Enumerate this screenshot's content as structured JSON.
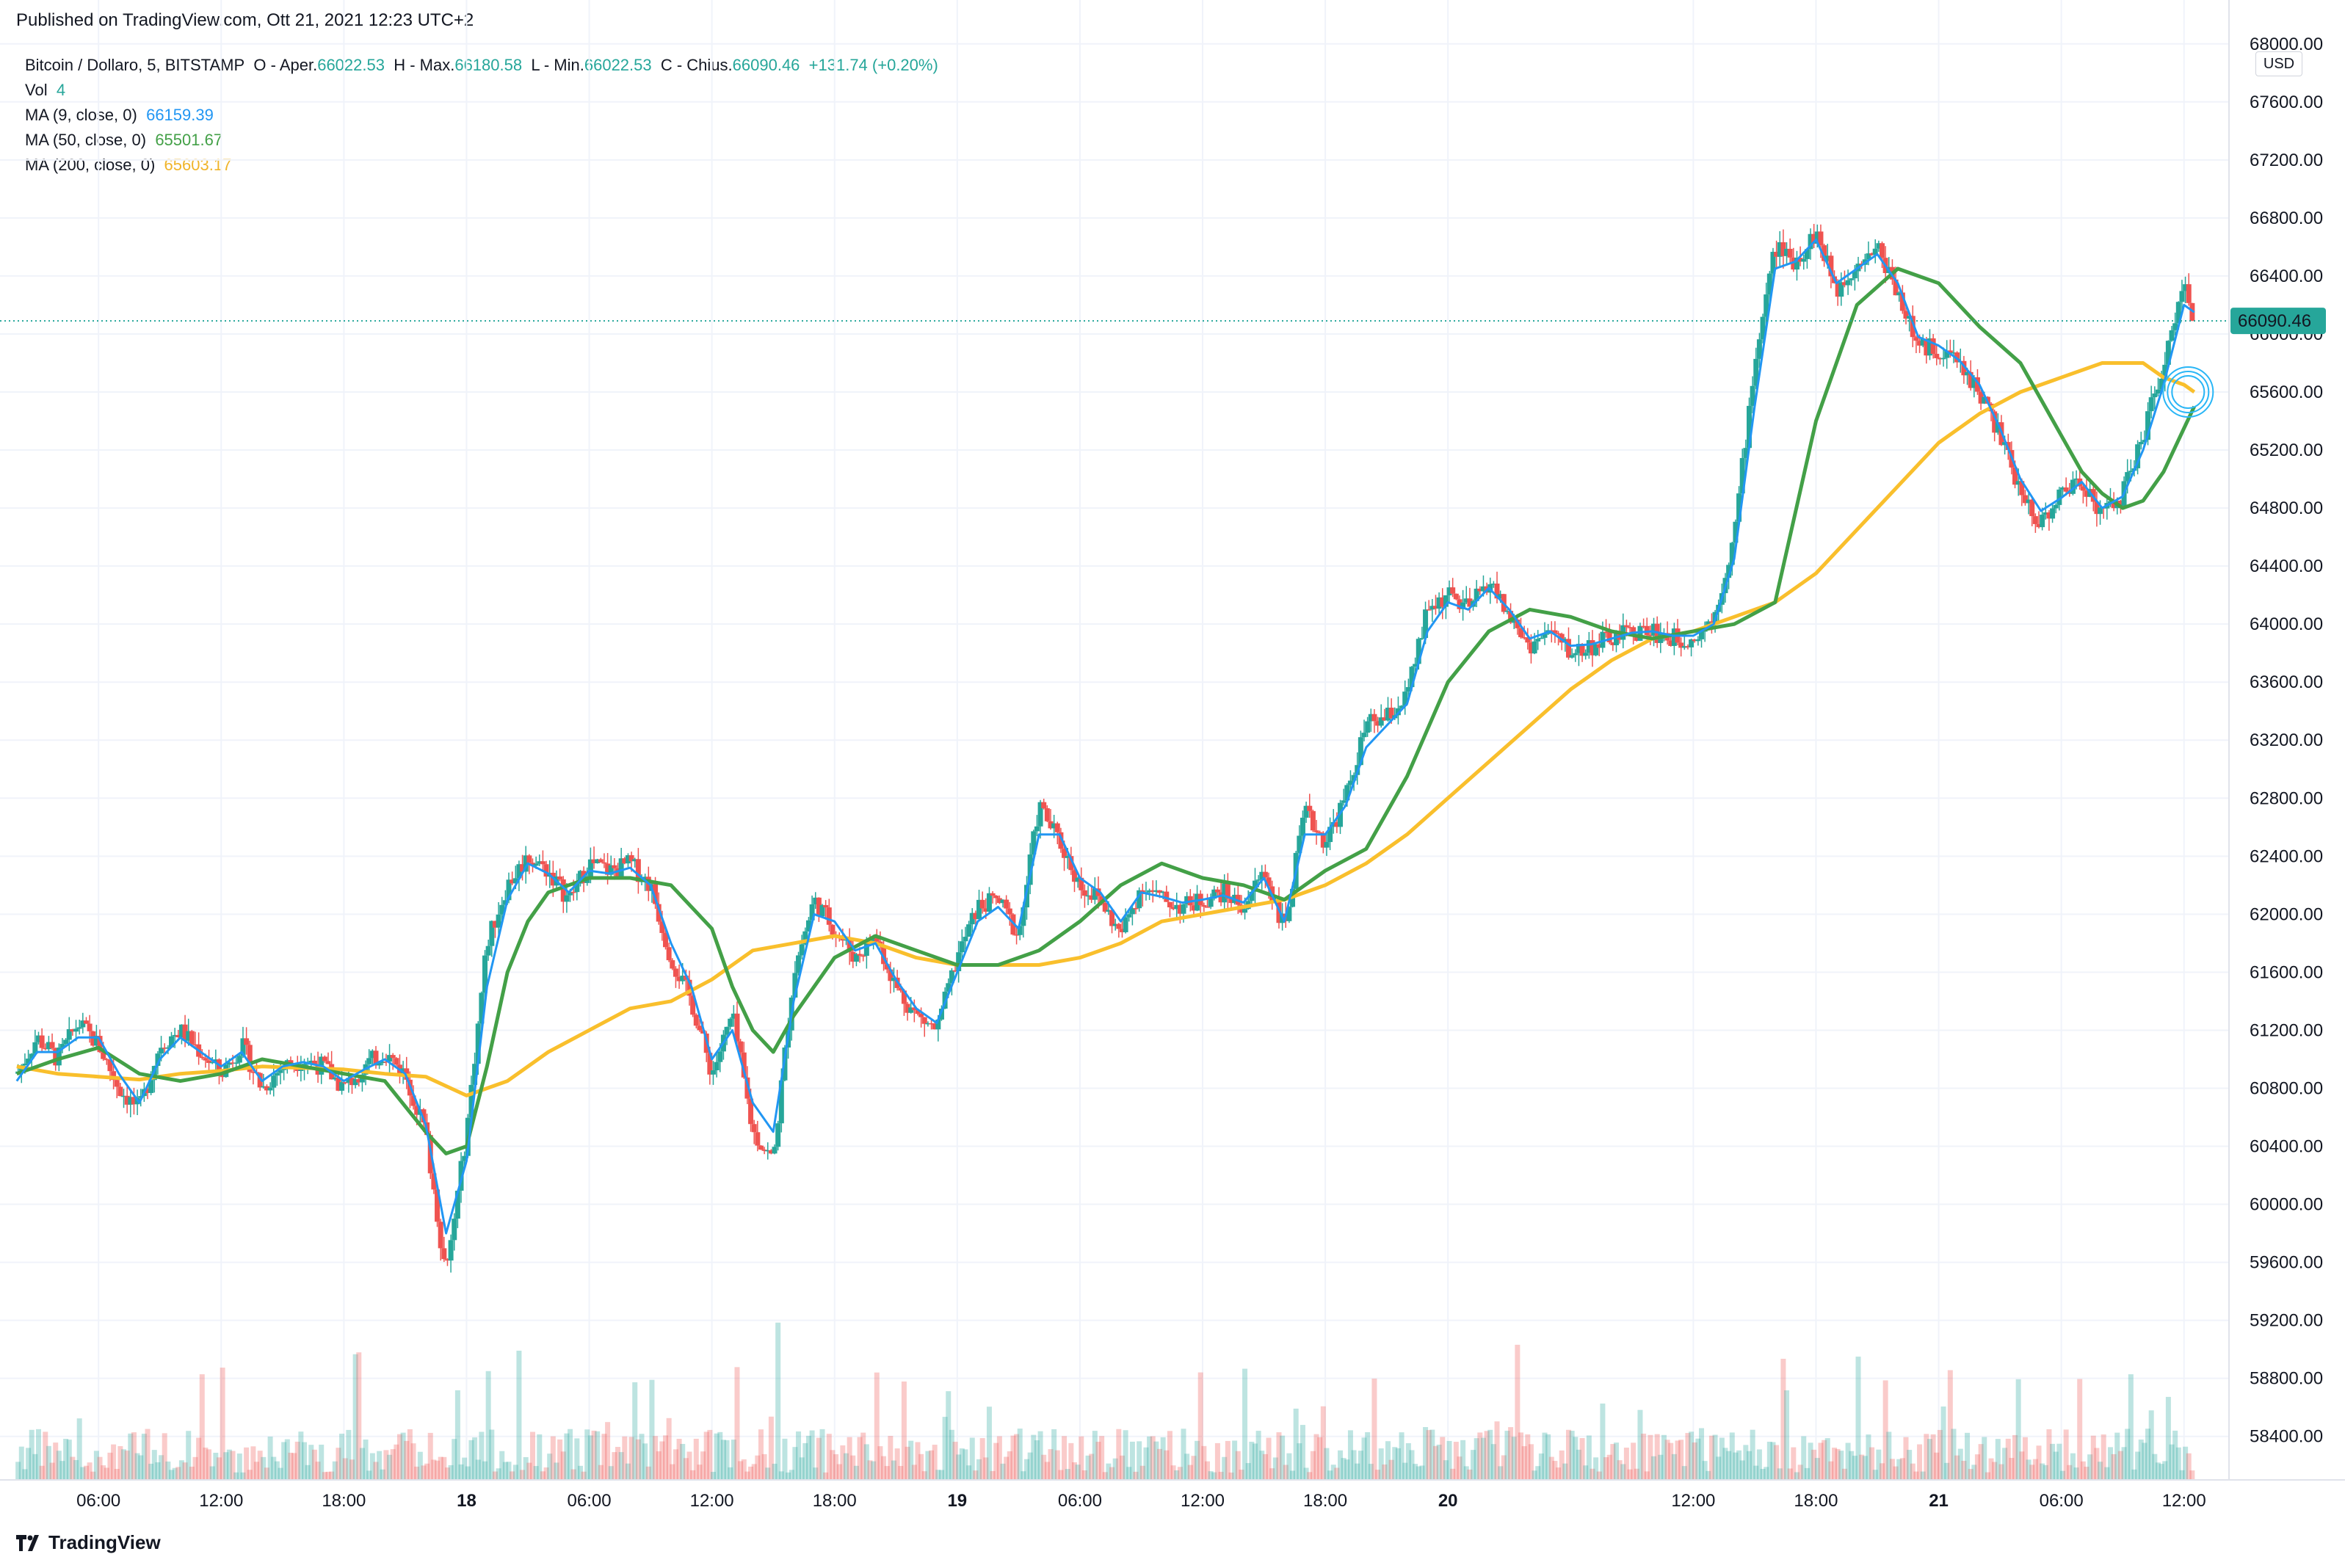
{
  "published": "Published on TradingView.com, Ott 21, 2021 12:23 UTC+2",
  "brand": "TradingView",
  "currency": "USD",
  "legend": {
    "symbol": "Bitcoin / Dollaro, 5, BITSTAMP",
    "o_label": "O - Aper.",
    "o_value": "66022.53",
    "h_label": "H - Max.",
    "h_value": "66180.58",
    "l_label": "L - Min.",
    "l_value": "66022.53",
    "c_label": "C - Chius.",
    "c_value": "66090.46",
    "change": "+131.74 (+0.20%)",
    "vol_label": "Vol",
    "vol_value": "4",
    "ma9_label": "MA (9, close, 0)",
    "ma9_value": "66159.39",
    "ma50_label": "MA (50, close, 0)",
    "ma50_value": "65501.67",
    "ma200_label": "MA (200, close, 0)",
    "ma200_value": "65603.17"
  },
  "colors": {
    "up": "#26a69a",
    "down": "#ef5350",
    "ma9": "#2196f3",
    "ma50": "#43a047",
    "ma200": "#f9bf2c",
    "grid": "#f0f3fa",
    "price_label": "#26a69a"
  },
  "chart_data": {
    "type": "line",
    "title": "",
    "current_price": 66090.46,
    "current_price_label": "66090.46",
    "y_ticks": [
      "68000.00",
      "67600.00",
      "67200.00",
      "66800.00",
      "66400.00",
      "66000.00",
      "65600.00",
      "65200.00",
      "64800.00",
      "64400.00",
      "64000.00",
      "63600.00",
      "63200.00",
      "62800.00",
      "62400.00",
      "62000.00",
      "61600.00",
      "61200.00",
      "60800.00",
      "60400.00",
      "60000.00",
      "59600.00",
      "59200.00",
      "58800.00",
      "58400.00"
    ],
    "y_tick_values": [
      68000,
      67600,
      67200,
      66800,
      66400,
      66000,
      65600,
      65200,
      64800,
      64400,
      64000,
      63600,
      63200,
      62800,
      62400,
      62000,
      61600,
      61200,
      60800,
      60400,
      60000,
      59600,
      59200,
      58800,
      58400
    ],
    "x_labels": [
      {
        "t": 6,
        "label": "06:00",
        "bold": false
      },
      {
        "t": 12,
        "label": "12:00",
        "bold": false
      },
      {
        "t": 18,
        "label": "18:00",
        "bold": false
      },
      {
        "t": 24,
        "label": "18",
        "bold": true
      },
      {
        "t": 30,
        "label": "06:00",
        "bold": false
      },
      {
        "t": 36,
        "label": "12:00",
        "bold": false
      },
      {
        "t": 42,
        "label": "18:00",
        "bold": false
      },
      {
        "t": 48,
        "label": "19",
        "bold": true
      },
      {
        "t": 54,
        "label": "06:00",
        "bold": false
      },
      {
        "t": 60,
        "label": "12:00",
        "bold": false
      },
      {
        "t": 66,
        "label": "18:00",
        "bold": false
      },
      {
        "t": 72,
        "label": "20",
        "bold": true
      },
      {
        "t": 84,
        "label": "12:00",
        "bold": false
      },
      {
        "t": 90,
        "label": "18:00",
        "bold": false
      },
      {
        "t": 96,
        "label": "21",
        "bold": true
      },
      {
        "t": 102,
        "label": "06:00",
        "bold": false
      },
      {
        "t": 108,
        "label": "12:00",
        "bold": false
      }
    ],
    "x_range_hours": [
      1.9,
      110.2
    ],
    "y_range": [
      58100,
      68100
    ],
    "price": {
      "x": [
        2,
        3,
        4,
        5,
        6,
        7,
        8,
        9,
        10,
        11,
        12,
        13,
        14,
        15,
        16,
        17,
        18,
        19,
        20,
        21,
        22,
        23,
        24,
        25,
        26,
        27,
        28,
        29,
        30,
        31,
        32,
        33,
        34,
        35,
        36,
        37,
        38,
        39,
        40,
        41,
        42,
        43,
        44,
        45,
        46,
        47,
        48,
        49,
        50,
        51,
        52,
        53,
        54,
        55,
        56,
        57,
        58,
        59,
        60,
        61,
        62,
        63,
        64,
        65,
        66,
        67,
        68,
        69,
        70,
        71,
        72,
        73,
        74,
        75,
        76,
        77,
        78,
        79,
        80,
        81,
        82,
        83,
        84,
        85,
        86,
        87,
        88,
        89,
        90,
        91,
        92,
        93,
        94,
        95,
        96,
        97,
        98,
        99,
        100,
        101,
        102,
        103,
        104,
        105,
        106,
        107,
        108,
        108.5
      ],
      "y": [
        60900,
        61150,
        61000,
        61250,
        61100,
        60800,
        60650,
        61100,
        61200,
        61050,
        60900,
        61100,
        60800,
        60950,
        61000,
        60950,
        60800,
        60950,
        61050,
        60900,
        60500,
        59500,
        60500,
        61800,
        62200,
        62400,
        62300,
        62100,
        62350,
        62300,
        62350,
        62200,
        61700,
        61400,
        60900,
        61300,
        60500,
        60300,
        61600,
        62100,
        61900,
        61700,
        61850,
        61500,
        61300,
        61200,
        61700,
        62050,
        62100,
        61850,
        62750,
        62500,
        62200,
        62100,
        61850,
        62200,
        62100,
        62050,
        62100,
        62150,
        62050,
        62300,
        61900,
        62700,
        62500,
        62800,
        63300,
        63350,
        63500,
        64100,
        64200,
        64100,
        64300,
        64050,
        63850,
        63950,
        63800,
        63850,
        63900,
        63950,
        63950,
        63900,
        63900,
        64050,
        64600,
        65800,
        66600,
        66500,
        66700,
        66300,
        66500,
        66600,
        66300,
        65900,
        65900,
        65800,
        65600,
        65300,
        64900,
        64700,
        64900,
        65000,
        64750,
        64900,
        65300,
        65800,
        66300,
        66100
      ]
    },
    "ma9": {
      "x": [
        2,
        3,
        4,
        5,
        6,
        7,
        8,
        9,
        10,
        11,
        12,
        13,
        14,
        15,
        16,
        17,
        18,
        19,
        20,
        21,
        22,
        23,
        24,
        25,
        26,
        27,
        28,
        29,
        30,
        31,
        32,
        33,
        34,
        35,
        36,
        37,
        38,
        39,
        40,
        41,
        42,
        43,
        44,
        45,
        46,
        47,
        48,
        49,
        50,
        51,
        52,
        53,
        54,
        55,
        56,
        57,
        58,
        59,
        60,
        61,
        62,
        63,
        64,
        65,
        66,
        67,
        68,
        69,
        70,
        71,
        72,
        73,
        74,
        75,
        76,
        77,
        78,
        79,
        80,
        81,
        82,
        83,
        84,
        85,
        86,
        87,
        88,
        89,
        90,
        91,
        92,
        93,
        94,
        95,
        96,
        97,
        98,
        99,
        100,
        101,
        102,
        103,
        104,
        105,
        106,
        107,
        108,
        108.5
      ],
      "y": [
        60850,
        61050,
        61050,
        61150,
        61150,
        60900,
        60700,
        61000,
        61150,
        61050,
        60950,
        61050,
        60850,
        60950,
        60980,
        60950,
        60850,
        60930,
        61000,
        60900,
        60550,
        59800,
        60300,
        61500,
        62100,
        62350,
        62280,
        62150,
        62300,
        62280,
        62320,
        62200,
        61800,
        61500,
        61000,
        61200,
        60700,
        60500,
        61400,
        62000,
        61950,
        61750,
        61800,
        61550,
        61350,
        61250,
        61600,
        61950,
        62050,
        61900,
        62550,
        62550,
        62250,
        62150,
        61950,
        62150,
        62120,
        62080,
        62100,
        62130,
        62080,
        62250,
        61950,
        62550,
        62550,
        62750,
        63150,
        63300,
        63450,
        63950,
        64150,
        64100,
        64250,
        64100,
        63900,
        63950,
        63850,
        63860,
        63900,
        63940,
        63950,
        63920,
        63920,
        64000,
        64450,
        65500,
        66450,
        66500,
        66650,
        66350,
        66450,
        66550,
        66350,
        65980,
        65920,
        65820,
        65650,
        65350,
        65000,
        64780,
        64870,
        64980,
        64800,
        64880,
        65200,
        65650,
        66200,
        66150
      ]
    },
    "ma50": {
      "x": [
        2,
        4,
        6,
        8,
        10,
        12,
        14,
        16,
        18,
        20,
        22,
        23,
        24,
        25,
        26,
        27,
        28,
        29,
        30,
        32,
        34,
        36,
        37,
        38,
        39,
        40,
        42,
        44,
        46,
        48,
        50,
        52,
        54,
        56,
        58,
        60,
        62,
        64,
        66,
        68,
        70,
        72,
        74,
        76,
        78,
        80,
        82,
        84,
        86,
        88,
        90,
        92,
        94,
        96,
        98,
        100,
        101,
        102,
        103,
        104,
        105,
        106,
        107,
        108,
        108.5
      ],
      "y": [
        60900,
        61000,
        61080,
        60900,
        60850,
        60900,
        61000,
        60950,
        60900,
        60850,
        60500,
        60350,
        60400,
        60950,
        61600,
        61950,
        62150,
        62200,
        62250,
        62250,
        62200,
        61900,
        61500,
        61200,
        61050,
        61300,
        61700,
        61850,
        61750,
        61650,
        61650,
        61750,
        61950,
        62200,
        62350,
        62250,
        62200,
        62100,
        62300,
        62450,
        62950,
        63600,
        63950,
        64100,
        64050,
        63950,
        63900,
        63950,
        64000,
        64150,
        65400,
        66200,
        66450,
        66350,
        66050,
        65800,
        65550,
        65300,
        65050,
        64900,
        64800,
        64850,
        65050,
        65350,
        65500
      ]
    },
    "ma200": {
      "x": [
        2,
        4,
        6,
        8,
        10,
        12,
        14,
        16,
        18,
        20,
        22,
        24,
        26,
        28,
        30,
        32,
        34,
        36,
        38,
        40,
        42,
        44,
        46,
        48,
        50,
        52,
        54,
        56,
        58,
        60,
        62,
        64,
        66,
        68,
        70,
        72,
        74,
        76,
        78,
        80,
        82,
        84,
        86,
        88,
        90,
        92,
        94,
        96,
        98,
        100,
        102,
        104,
        106,
        107,
        108,
        108.5
      ],
      "y": [
        60950,
        60900,
        60880,
        60860,
        60900,
        60920,
        60950,
        60940,
        60930,
        60900,
        60880,
        60750,
        60850,
        61050,
        61200,
        61350,
        61400,
        61550,
        61750,
        61800,
        61850,
        61800,
        61700,
        61650,
        61650,
        61650,
        61700,
        61800,
        61950,
        62000,
        62050,
        62100,
        62200,
        62350,
        62550,
        62800,
        63050,
        63300,
        63550,
        63750,
        63900,
        63950,
        64050,
        64150,
        64350,
        64650,
        64950,
        65250,
        65450,
        65600,
        65700,
        65800,
        65800,
        65700,
        65650,
        65600
      ]
    }
  }
}
